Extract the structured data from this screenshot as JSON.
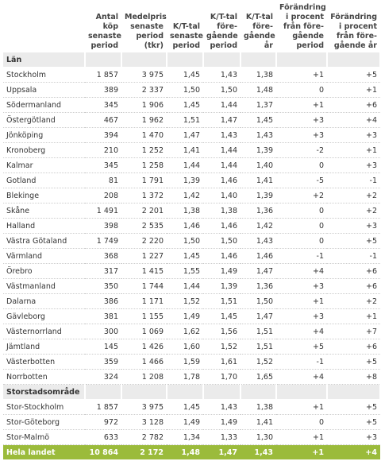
{
  "header": {
    "columns": [
      [
        "Antal",
        "köp",
        "senaste",
        "period"
      ],
      [
        "Medelpris",
        "senaste",
        "period",
        "(tkr)"
      ],
      [
        "K/T-tal",
        "senaste",
        "period"
      ],
      [
        "K/T-tal",
        "före-",
        "gående",
        "period"
      ],
      [
        "K/T-tal",
        "före-",
        "gående",
        "år"
      ],
      [
        "Förändring",
        "i procent",
        "från före-",
        "gående",
        "period"
      ],
      [
        "Förändring",
        "i procent",
        "från före-",
        "gående år"
      ]
    ]
  },
  "sections": [
    {
      "title": "Län",
      "rows": [
        [
          "Stockholm",
          "1 857",
          "3 975",
          "1,45",
          "1,43",
          "1,38",
          "+1",
          "+5"
        ],
        [
          "Uppsala",
          "389",
          "2 337",
          "1,50",
          "1,50",
          "1,48",
          "0",
          "+1"
        ],
        [
          "Södermanland",
          "345",
          "1 906",
          "1,45",
          "1,44",
          "1,37",
          "+1",
          "+6"
        ],
        [
          "Östergötland",
          "467",
          "1 962",
          "1,51",
          "1,47",
          "1,45",
          "+3",
          "+4"
        ],
        [
          "Jönköping",
          "394",
          "1 470",
          "1,47",
          "1,43",
          "1,43",
          "+3",
          "+3"
        ],
        [
          "Kronoberg",
          "210",
          "1 252",
          "1,41",
          "1,44",
          "1,39",
          "-2",
          "+1"
        ],
        [
          "Kalmar",
          "345",
          "1 258",
          "1,44",
          "1,44",
          "1,40",
          "0",
          "+3"
        ],
        [
          "Gotland",
          "81",
          "1 791",
          "1,39",
          "1,46",
          "1,41",
          "-5",
          "-1"
        ],
        [
          "Blekinge",
          "208",
          "1 372",
          "1,42",
          "1,40",
          "1,39",
          "+2",
          "+2"
        ],
        [
          "Skåne",
          "1 491",
          "2 201",
          "1,38",
          "1,38",
          "1,36",
          "0",
          "+2"
        ],
        [
          "Halland",
          "398",
          "2 535",
          "1,46",
          "1,46",
          "1,42",
          "0",
          "+3"
        ],
        [
          "Västra Götaland",
          "1 749",
          "2 220",
          "1,50",
          "1,50",
          "1,43",
          "0",
          "+5"
        ],
        [
          "Värmland",
          "368",
          "1 227",
          "1,45",
          "1,46",
          "1,46",
          "-1",
          "-1"
        ],
        [
          "Örebro",
          "317",
          "1 415",
          "1,55",
          "1,49",
          "1,47",
          "+4",
          "+6"
        ],
        [
          "Västmanland",
          "350",
          "1 744",
          "1,44",
          "1,39",
          "1,36",
          "+3",
          "+6"
        ],
        [
          "Dalarna",
          "386",
          "1 171",
          "1,52",
          "1,51",
          "1,50",
          "+1",
          "+2"
        ],
        [
          "Gävleborg",
          "381",
          "1 155",
          "1,49",
          "1,45",
          "1,47",
          "+3",
          "+1"
        ],
        [
          "Västernorrland",
          "300",
          "1 069",
          "1,62",
          "1,56",
          "1,51",
          "+4",
          "+7"
        ],
        [
          "Jämtland",
          "145",
          "1 426",
          "1,60",
          "1,52",
          "1,51",
          "+5",
          "+6"
        ],
        [
          "Västerbotten",
          "359",
          "1 466",
          "1,59",
          "1,61",
          "1,52",
          "-1",
          "+5"
        ],
        [
          "Norrbotten",
          "324",
          "1 208",
          "1,78",
          "1,70",
          "1,65",
          "+4",
          "+8"
        ]
      ]
    },
    {
      "title": "Storstadsområde",
      "rows": [
        [
          "Stor-Stockholm",
          "1 857",
          "3 975",
          "1,45",
          "1,43",
          "1,38",
          "+1",
          "+5"
        ],
        [
          "Stor-Göteborg",
          "972",
          "3 128",
          "1,49",
          "1,49",
          "1,41",
          "0",
          "+5"
        ],
        [
          "Stor-Malmö",
          "633",
          "2 782",
          "1,34",
          "1,33",
          "1,30",
          "+1",
          "+3"
        ]
      ]
    }
  ],
  "total": [
    "Hela landet",
    "10 864",
    "2 172",
    "1,48",
    "1,47",
    "1,43",
    "+1",
    "+4"
  ]
}
